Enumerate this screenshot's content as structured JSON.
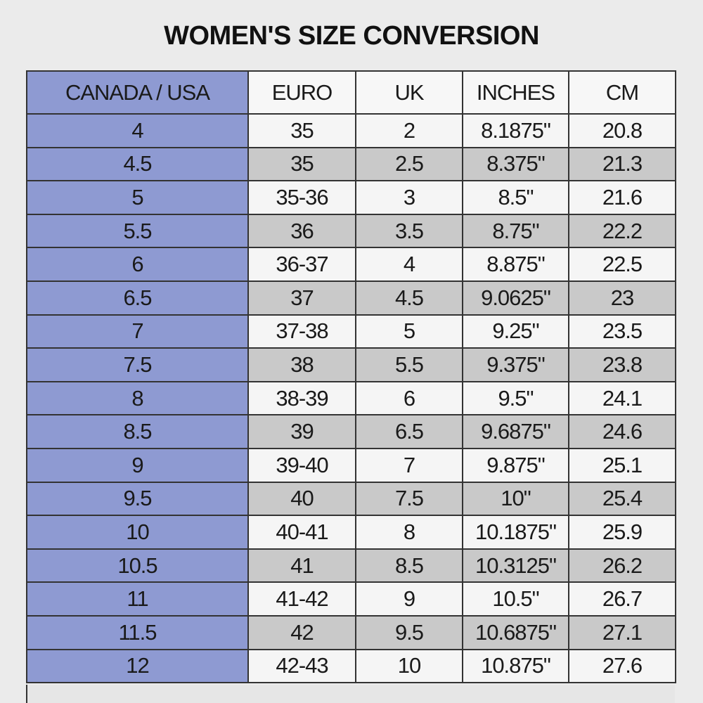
{
  "header": {
    "title": "WOMEN'S SIZE CONVERSION"
  },
  "table": {
    "columns": [
      "CANADA / USA",
      "EURO",
      "UK",
      "INCHES",
      "CM"
    ],
    "rows": [
      [
        "4",
        "35",
        "2",
        "8.1875\"",
        "20.8"
      ],
      [
        "4.5",
        "35",
        "2.5",
        "8.375\"",
        "21.3"
      ],
      [
        "5",
        "35-36",
        "3",
        "8.5\"",
        "21.6"
      ],
      [
        "5.5",
        "36",
        "3.5",
        "8.75\"",
        "22.2"
      ],
      [
        "6",
        "36-37",
        "4",
        "8.875\"",
        "22.5"
      ],
      [
        "6.5",
        "37",
        "4.5",
        "9.0625\"",
        "23"
      ],
      [
        "7",
        "37-38",
        "5",
        "9.25\"",
        "23.5"
      ],
      [
        "7.5",
        "38",
        "5.5",
        "9.375\"",
        "23.8"
      ],
      [
        "8",
        "38-39",
        "6",
        "9.5\"",
        "24.1"
      ],
      [
        "8.5",
        "39",
        "6.5",
        "9.6875\"",
        "24.6"
      ],
      [
        "9",
        "39-40",
        "7",
        "9.875\"",
        "25.1"
      ],
      [
        "9.5",
        "40",
        "7.5",
        "10\"",
        "25.4"
      ],
      [
        "10",
        "40-41",
        "8",
        "10.1875\"",
        "25.9"
      ],
      [
        "10.5",
        "41",
        "8.5",
        "10.3125\"",
        "26.2"
      ],
      [
        "11",
        "41-42",
        "9",
        "10.5\"",
        "26.7"
      ],
      [
        "11.5",
        "42",
        "9.5",
        "10.6875\"",
        "27.1"
      ],
      [
        "12",
        "42-43",
        "10",
        "10.875\"",
        "27.6"
      ]
    ]
  }
}
